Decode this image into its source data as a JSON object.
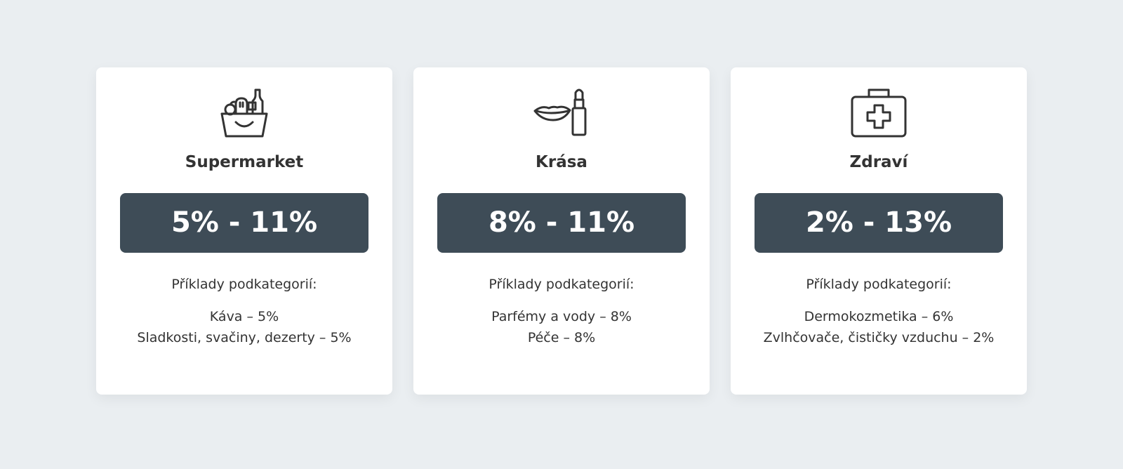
{
  "cards": [
    {
      "title": "Supermarket",
      "icon": "grocery-basket-icon",
      "range": "5% - 11%",
      "subtitle": "Příklady podkategorií:",
      "examples": [
        "Káva – 5%",
        "Sladkosti, svačiny, dezerty – 5%"
      ]
    },
    {
      "title": "Krása",
      "icon": "lips-lipstick-icon",
      "range": "8% - 11%",
      "subtitle": "Příklady podkategorií:",
      "examples": [
        "Parfémy a vody – 8%",
        "Péče – 8%"
      ]
    },
    {
      "title": "Zdraví",
      "icon": "first-aid-kit-icon",
      "range": "2% - 13%",
      "subtitle": "Příklady podkategorií:",
      "examples": [
        "Dermokozmetika – 6%",
        "Zvlhčovače, čističky vzduchu – 2%"
      ]
    }
  ],
  "colors": {
    "range_bg": "#3e4c57",
    "page_bg": "#eaeef1"
  }
}
